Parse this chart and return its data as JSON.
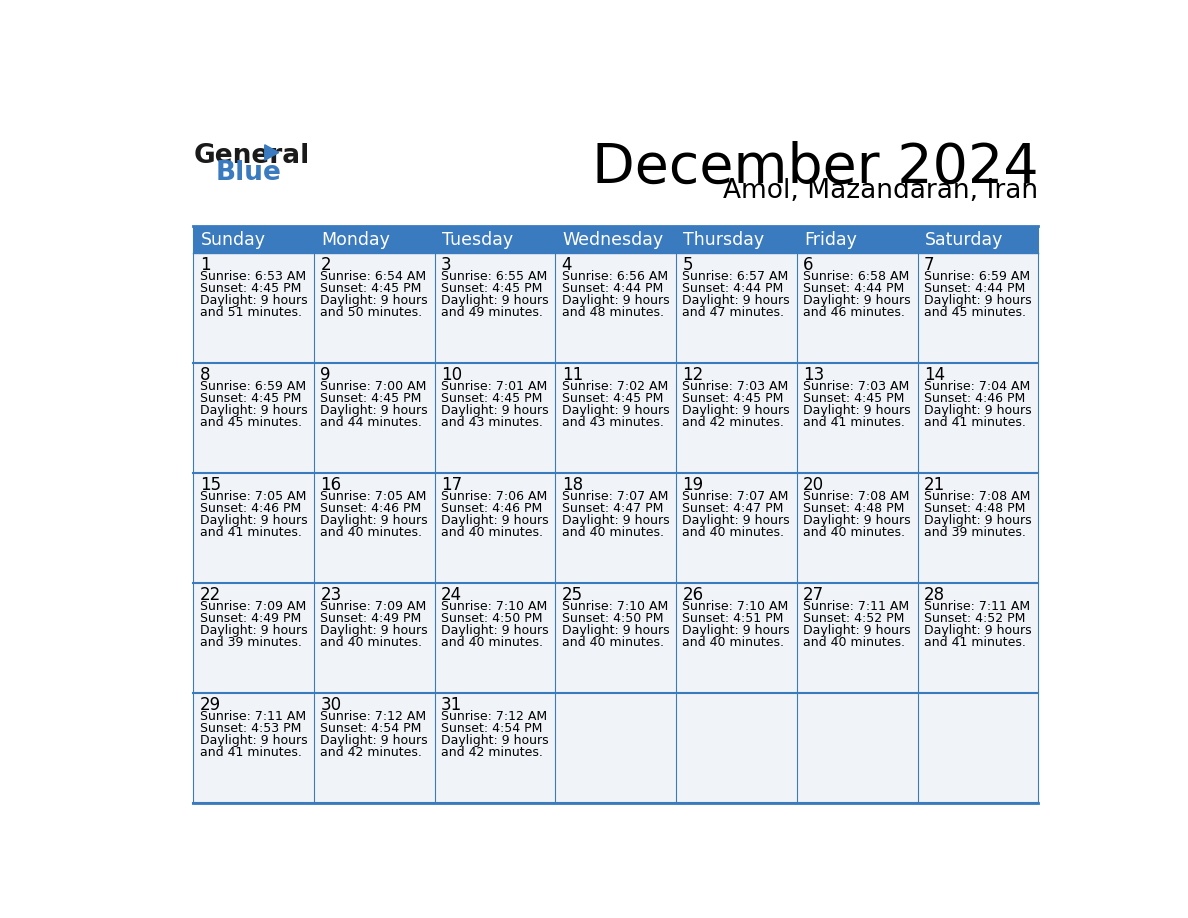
{
  "title": "December 2024",
  "subtitle": "Amol, Mazandaran, Iran",
  "header_bg": "#3a7abf",
  "header_text_color": "#ffffff",
  "cell_bg": "#f0f4f8",
  "border_color": "#3a7abf",
  "separator_color": "#7aaadc",
  "days_of_week": [
    "Sunday",
    "Monday",
    "Tuesday",
    "Wednesday",
    "Thursday",
    "Friday",
    "Saturday"
  ],
  "calendar": [
    [
      {
        "day": 1,
        "sunrise": "6:53 AM",
        "sunset": "4:45 PM",
        "daylight": "9 hours and 51 minutes."
      },
      {
        "day": 2,
        "sunrise": "6:54 AM",
        "sunset": "4:45 PM",
        "daylight": "9 hours and 50 minutes."
      },
      {
        "day": 3,
        "sunrise": "6:55 AM",
        "sunset": "4:45 PM",
        "daylight": "9 hours and 49 minutes."
      },
      {
        "day": 4,
        "sunrise": "6:56 AM",
        "sunset": "4:44 PM",
        "daylight": "9 hours and 48 minutes."
      },
      {
        "day": 5,
        "sunrise": "6:57 AM",
        "sunset": "4:44 PM",
        "daylight": "9 hours and 47 minutes."
      },
      {
        "day": 6,
        "sunrise": "6:58 AM",
        "sunset": "4:44 PM",
        "daylight": "9 hours and 46 minutes."
      },
      {
        "day": 7,
        "sunrise": "6:59 AM",
        "sunset": "4:44 PM",
        "daylight": "9 hours and 45 minutes."
      }
    ],
    [
      {
        "day": 8,
        "sunrise": "6:59 AM",
        "sunset": "4:45 PM",
        "daylight": "9 hours and 45 minutes."
      },
      {
        "day": 9,
        "sunrise": "7:00 AM",
        "sunset": "4:45 PM",
        "daylight": "9 hours and 44 minutes."
      },
      {
        "day": 10,
        "sunrise": "7:01 AM",
        "sunset": "4:45 PM",
        "daylight": "9 hours and 43 minutes."
      },
      {
        "day": 11,
        "sunrise": "7:02 AM",
        "sunset": "4:45 PM",
        "daylight": "9 hours and 43 minutes."
      },
      {
        "day": 12,
        "sunrise": "7:03 AM",
        "sunset": "4:45 PM",
        "daylight": "9 hours and 42 minutes."
      },
      {
        "day": 13,
        "sunrise": "7:03 AM",
        "sunset": "4:45 PM",
        "daylight": "9 hours and 41 minutes."
      },
      {
        "day": 14,
        "sunrise": "7:04 AM",
        "sunset": "4:46 PM",
        "daylight": "9 hours and 41 minutes."
      }
    ],
    [
      {
        "day": 15,
        "sunrise": "7:05 AM",
        "sunset": "4:46 PM",
        "daylight": "9 hours and 41 minutes."
      },
      {
        "day": 16,
        "sunrise": "7:05 AM",
        "sunset": "4:46 PM",
        "daylight": "9 hours and 40 minutes."
      },
      {
        "day": 17,
        "sunrise": "7:06 AM",
        "sunset": "4:46 PM",
        "daylight": "9 hours and 40 minutes."
      },
      {
        "day": 18,
        "sunrise": "7:07 AM",
        "sunset": "4:47 PM",
        "daylight": "9 hours and 40 minutes."
      },
      {
        "day": 19,
        "sunrise": "7:07 AM",
        "sunset": "4:47 PM",
        "daylight": "9 hours and 40 minutes."
      },
      {
        "day": 20,
        "sunrise": "7:08 AM",
        "sunset": "4:48 PM",
        "daylight": "9 hours and 40 minutes."
      },
      {
        "day": 21,
        "sunrise": "7:08 AM",
        "sunset": "4:48 PM",
        "daylight": "9 hours and 39 minutes."
      }
    ],
    [
      {
        "day": 22,
        "sunrise": "7:09 AM",
        "sunset": "4:49 PM",
        "daylight": "9 hours and 39 minutes."
      },
      {
        "day": 23,
        "sunrise": "7:09 AM",
        "sunset": "4:49 PM",
        "daylight": "9 hours and 40 minutes."
      },
      {
        "day": 24,
        "sunrise": "7:10 AM",
        "sunset": "4:50 PM",
        "daylight": "9 hours and 40 minutes."
      },
      {
        "day": 25,
        "sunrise": "7:10 AM",
        "sunset": "4:50 PM",
        "daylight": "9 hours and 40 minutes."
      },
      {
        "day": 26,
        "sunrise": "7:10 AM",
        "sunset": "4:51 PM",
        "daylight": "9 hours and 40 minutes."
      },
      {
        "day": 27,
        "sunrise": "7:11 AM",
        "sunset": "4:52 PM",
        "daylight": "9 hours and 40 minutes."
      },
      {
        "day": 28,
        "sunrise": "7:11 AM",
        "sunset": "4:52 PM",
        "daylight": "9 hours and 41 minutes."
      }
    ],
    [
      {
        "day": 29,
        "sunrise": "7:11 AM",
        "sunset": "4:53 PM",
        "daylight": "9 hours and 41 minutes."
      },
      {
        "day": 30,
        "sunrise": "7:12 AM",
        "sunset": "4:54 PM",
        "daylight": "9 hours and 42 minutes."
      },
      {
        "day": 31,
        "sunrise": "7:12 AM",
        "sunset": "4:54 PM",
        "daylight": "9 hours and 42 minutes."
      },
      null,
      null,
      null,
      null
    ]
  ]
}
